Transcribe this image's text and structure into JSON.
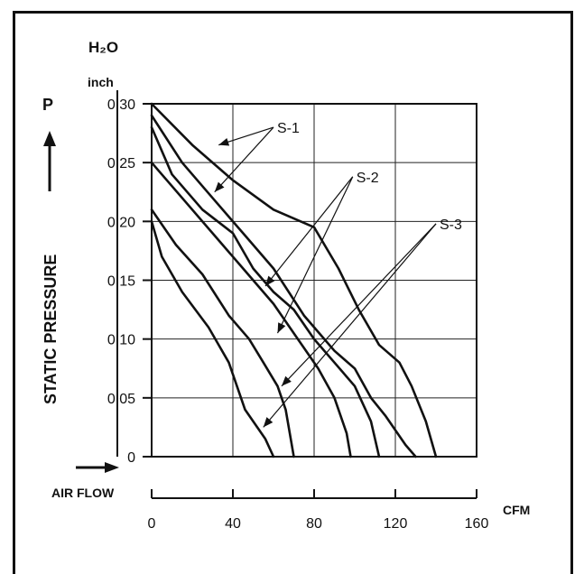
{
  "chart_data": {
    "type": "line",
    "y_unit_top": "H₂O",
    "y_unit": "inch",
    "y_symbol": "P",
    "ylabel": "STATIC PRESSURE",
    "xlabel": "AIR FLOW",
    "x_unit": "CFM",
    "xlim": [
      0,
      160
    ],
    "ylim": [
      0,
      0.3
    ],
    "x_ticks": [
      "0",
      "40",
      "80",
      "120",
      "160"
    ],
    "y_ticks": [
      "0",
      "0.05",
      "0.10",
      "0.15",
      "0.20",
      "0.25",
      "0.30"
    ],
    "grid": true,
    "series": [
      {
        "group": "S-1",
        "points": [
          [
            0,
            0.3
          ],
          [
            20,
            0.265
          ],
          [
            40,
            0.235
          ],
          [
            60,
            0.21
          ],
          [
            80,
            0.195
          ],
          [
            92,
            0.16
          ],
          [
            102,
            0.125
          ],
          [
            112,
            0.095
          ],
          [
            122,
            0.08
          ],
          [
            128,
            0.06
          ],
          [
            135,
            0.03
          ],
          [
            140,
            0.0
          ]
        ]
      },
      {
        "group": "S-1",
        "points": [
          [
            0,
            0.29
          ],
          [
            15,
            0.25
          ],
          [
            30,
            0.22
          ],
          [
            45,
            0.19
          ],
          [
            60,
            0.16
          ],
          [
            75,
            0.12
          ],
          [
            90,
            0.09
          ],
          [
            100,
            0.075
          ],
          [
            108,
            0.05
          ],
          [
            115,
            0.035
          ],
          [
            125,
            0.01
          ],
          [
            130,
            0.0
          ]
        ]
      },
      {
        "group": "S-2",
        "points": [
          [
            0,
            0.28
          ],
          [
            10,
            0.24
          ],
          [
            25,
            0.21
          ],
          [
            40,
            0.19
          ],
          [
            50,
            0.16
          ],
          [
            60,
            0.14
          ],
          [
            70,
            0.125
          ],
          [
            80,
            0.1
          ],
          [
            90,
            0.08
          ],
          [
            100,
            0.06
          ],
          [
            108,
            0.03
          ],
          [
            112,
            0.0
          ]
        ]
      },
      {
        "group": "S-2",
        "points": [
          [
            0,
            0.25
          ],
          [
            15,
            0.22
          ],
          [
            30,
            0.19
          ],
          [
            45,
            0.16
          ],
          [
            60,
            0.13
          ],
          [
            72,
            0.1
          ],
          [
            82,
            0.075
          ],
          [
            90,
            0.05
          ],
          [
            96,
            0.02
          ],
          [
            98,
            0.0
          ]
        ]
      },
      {
        "group": "S-3",
        "points": [
          [
            0,
            0.21
          ],
          [
            12,
            0.18
          ],
          [
            25,
            0.155
          ],
          [
            38,
            0.12
          ],
          [
            48,
            0.1
          ],
          [
            55,
            0.08
          ],
          [
            62,
            0.06
          ],
          [
            66,
            0.04
          ],
          [
            68,
            0.02
          ],
          [
            70,
            0.0
          ]
        ]
      },
      {
        "group": "S-3",
        "points": [
          [
            0,
            0.2
          ],
          [
            5,
            0.17
          ],
          [
            15,
            0.14
          ],
          [
            28,
            0.11
          ],
          [
            38,
            0.08
          ],
          [
            42,
            0.06
          ],
          [
            46,
            0.04
          ],
          [
            52,
            0.025
          ],
          [
            56,
            0.015
          ],
          [
            60,
            0.0
          ]
        ]
      }
    ],
    "annotations": [
      {
        "label": "S-1",
        "anchor": [
          60,
          0.28
        ],
        "targets": [
          [
            33,
            0.265
          ],
          [
            31,
            0.225
          ]
        ]
      },
      {
        "label": "S-2",
        "anchor": [
          99,
          0.238
        ],
        "targets": [
          [
            56,
            0.145
          ],
          [
            62,
            0.105
          ]
        ]
      },
      {
        "label": "S-3",
        "anchor": [
          140,
          0.198
        ],
        "targets": [
          [
            64,
            0.06
          ],
          [
            55,
            0.025
          ]
        ]
      }
    ]
  }
}
